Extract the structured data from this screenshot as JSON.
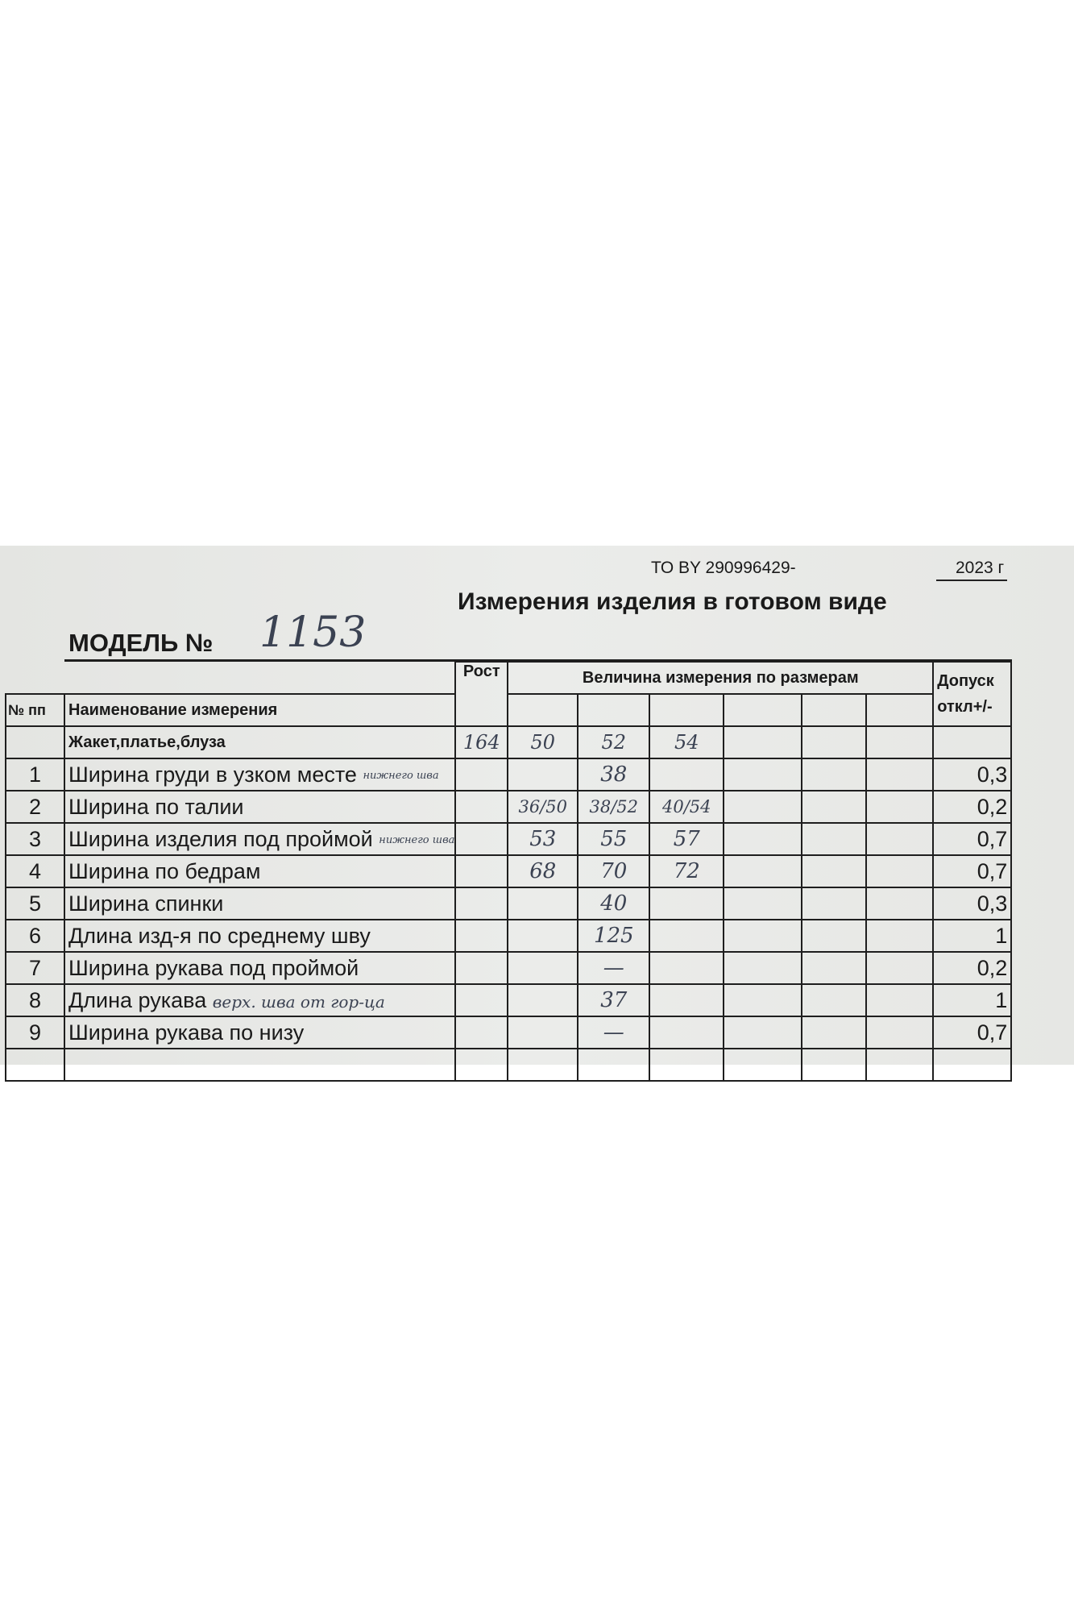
{
  "header": {
    "standard": "ТО BY 290996429-",
    "year": "2023 г",
    "title": "Измерения изделия в готовом виде",
    "model_label": "МОДЕЛЬ №",
    "model_number": "1153"
  },
  "table": {
    "col_no": "№ пп",
    "col_name": "Наименование измерения",
    "col_height": "Рост",
    "col_sizes": "Величина измерения по размерам",
    "col_tolerance_1": "Допуск",
    "col_tolerance_2": "откл+/-",
    "subheader": {
      "name": "Жакет,платье,блуза",
      "height": "164",
      "sizes": [
        "50",
        "52",
        "54"
      ]
    },
    "rows": [
      {
        "no": "1",
        "name": "Ширина груди в узком месте",
        "note": "нижнего шва",
        "sizes": [
          "",
          "38",
          ""
        ],
        "tolerance": "0,3"
      },
      {
        "no": "2",
        "name": "Ширина по талии",
        "note": "",
        "sizes": [
          "36/50",
          "38/52",
          "40/54"
        ],
        "tolerance": "0,2"
      },
      {
        "no": "3",
        "name": "Ширина изделия под проймой",
        "note": "нижнего шва",
        "sizes": [
          "53",
          "55",
          "57"
        ],
        "tolerance": "0,7"
      },
      {
        "no": "4",
        "name": "Ширина по бедрам",
        "note": "",
        "sizes": [
          "68",
          "70",
          "72"
        ],
        "tolerance": "0,7"
      },
      {
        "no": "5",
        "name": "Ширина спинки",
        "note": "",
        "sizes": [
          "",
          "40",
          ""
        ],
        "tolerance": "0,3"
      },
      {
        "no": "6",
        "name": "Длина изд-я по среднему шву",
        "note": "",
        "sizes": [
          "",
          "125",
          ""
        ],
        "tolerance": "1"
      },
      {
        "no": "7",
        "name": "Ширина рукава под проймой",
        "note": "",
        "sizes": [
          "",
          "—",
          ""
        ],
        "tolerance": "0,2"
      },
      {
        "no": "8",
        "name": "Длина рукава",
        "note": "верх. шва от гор-ца",
        "sizes": [
          "",
          "37",
          ""
        ],
        "tolerance": "1"
      },
      {
        "no": "9",
        "name": "Ширина рукава по низу",
        "note": "",
        "sizes": [
          "",
          "—",
          ""
        ],
        "tolerance": "0,7"
      }
    ]
  }
}
